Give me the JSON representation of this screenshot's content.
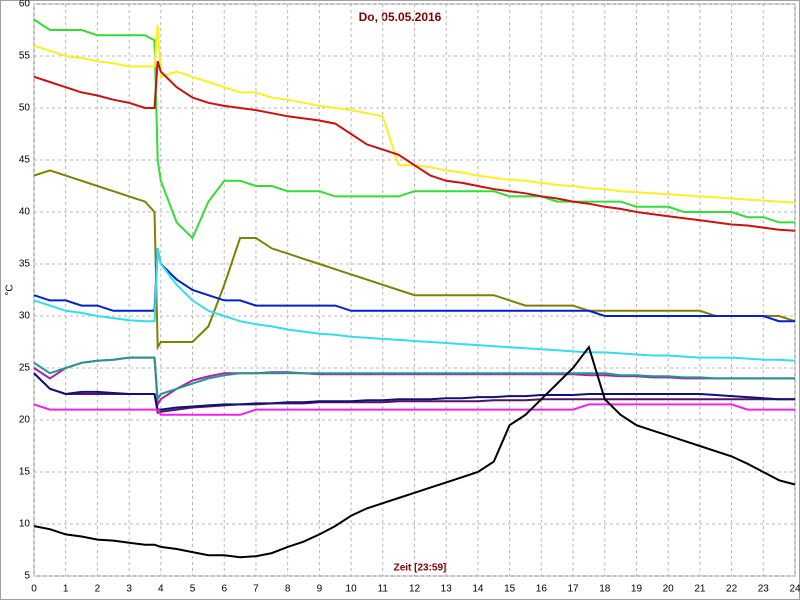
{
  "chart_data": {
    "type": "line",
    "title": "Do, 05.05.2016",
    "x_label": "Zeit [23:59]",
    "y_label": "°C",
    "x": [
      0,
      0.5,
      1,
      1.5,
      2,
      2.5,
      3,
      3.5,
      3.8,
      3.9,
      4,
      4.5,
      5,
      5.5,
      6,
      6.5,
      7,
      7.5,
      8,
      8.5,
      9,
      9.5,
      10,
      10.5,
      11,
      11.5,
      12,
      12.5,
      13,
      13.5,
      14,
      14.5,
      15,
      15.5,
      16,
      16.5,
      17,
      17.5,
      18,
      18.5,
      19,
      19.5,
      20,
      20.5,
      21,
      21.5,
      22,
      22.5,
      23,
      23.5,
      24
    ],
    "xlim": [
      0,
      24
    ],
    "xticks": [
      0,
      1,
      2,
      3,
      4,
      5,
      6,
      7,
      8,
      9,
      10,
      11,
      12,
      13,
      14,
      15,
      16,
      17,
      18,
      19,
      20,
      21,
      22,
      23,
      24
    ],
    "ylim": [
      5,
      60
    ],
    "yticks": [
      5,
      10,
      15,
      20,
      25,
      30,
      35,
      40,
      45,
      50,
      55,
      60
    ],
    "grid": true,
    "series": [
      {
        "color": "#33dd33",
        "values": [
          58.5,
          57.5,
          57.5,
          57.5,
          57,
          57,
          57,
          57,
          56.5,
          45,
          43,
          39,
          37.5,
          41,
          43,
          43,
          42.5,
          42.5,
          42,
          42,
          42,
          41.5,
          41.5,
          41.5,
          41.5,
          41.5,
          42,
          42,
          42,
          42,
          42,
          42,
          41.5,
          41.5,
          41.5,
          41,
          41,
          41,
          41,
          41,
          40.5,
          40.5,
          40.5,
          40,
          40,
          40,
          40,
          39.5,
          39.5,
          39,
          39
        ]
      },
      {
        "color": "#ffee22",
        "values": [
          56,
          55.5,
          55,
          54.8,
          54.5,
          54.3,
          54,
          54,
          54,
          58,
          53,
          53.5,
          53,
          52.5,
          52,
          51.5,
          51.5,
          51,
          50.8,
          50.5,
          50.2,
          50,
          49.8,
          49.5,
          49.2,
          44.5,
          44.5,
          44.3,
          44,
          43.8,
          43.5,
          43.3,
          43.1,
          43,
          42.8,
          42.6,
          42.5,
          42.3,
          42.2,
          42,
          41.9,
          41.8,
          41.7,
          41.6,
          41.5,
          41.4,
          41.3,
          41.2,
          41.1,
          41,
          40.9
        ]
      },
      {
        "color": "#cc1111",
        "values": [
          53,
          52.5,
          52,
          51.5,
          51.2,
          50.8,
          50.5,
          50,
          50,
          54.5,
          53.5,
          52,
          51,
          50.5,
          50.2,
          50,
          49.8,
          49.5,
          49.2,
          49,
          48.8,
          48.5,
          47.5,
          46.5,
          46,
          45.5,
          44.5,
          43.5,
          43,
          42.8,
          42.5,
          42.2,
          42,
          41.8,
          41.5,
          41.3,
          41,
          40.8,
          40.5,
          40.3,
          40,
          39.8,
          39.6,
          39.4,
          39.2,
          39,
          38.8,
          38.7,
          38.5,
          38.3,
          38.2
        ]
      },
      {
        "color": "#808000",
        "values": [
          43.5,
          44,
          43.5,
          43,
          42.5,
          42,
          41.5,
          41,
          40,
          27,
          27.5,
          27.5,
          27.5,
          29,
          33,
          37.5,
          37.5,
          36.5,
          36,
          35.5,
          35,
          34.5,
          34,
          33.5,
          33,
          32.5,
          32,
          32,
          32,
          32,
          32,
          32,
          31.5,
          31,
          31,
          31,
          31,
          30.5,
          30.5,
          30.5,
          30.5,
          30.5,
          30.5,
          30.5,
          30.5,
          30,
          30,
          30,
          30,
          30,
          29.5
        ]
      },
      {
        "color": "#0022cc",
        "values": [
          32,
          31.5,
          31.5,
          31,
          31,
          30.5,
          30.5,
          30.5,
          30.5,
          36.5,
          35,
          33.5,
          32.5,
          32,
          31.5,
          31.5,
          31,
          31,
          31,
          31,
          31,
          31,
          30.5,
          30.5,
          30.5,
          30.5,
          30.5,
          30.5,
          30.5,
          30.5,
          30.5,
          30.5,
          30.5,
          30.5,
          30.5,
          30.5,
          30.5,
          30.5,
          30,
          30,
          30,
          30,
          30,
          30,
          30,
          30,
          30,
          30,
          30,
          29.5,
          29.5
        ]
      },
      {
        "color": "#33ddee",
        "values": [
          31.5,
          31,
          30.5,
          30.3,
          30,
          29.8,
          29.6,
          29.5,
          29.5,
          36.5,
          35,
          33,
          31.5,
          30.5,
          30,
          29.5,
          29.2,
          29,
          28.7,
          28.5,
          28.3,
          28.2,
          28,
          27.9,
          27.8,
          27.7,
          27.6,
          27.5,
          27.4,
          27.3,
          27.2,
          27.1,
          27,
          26.9,
          26.8,
          26.7,
          26.6,
          26.5,
          26.5,
          26.4,
          26.3,
          26.2,
          26.2,
          26.1,
          26,
          26,
          26,
          25.9,
          25.8,
          25.8,
          25.7
        ]
      },
      {
        "color": "#aa22aa",
        "values": [
          25,
          24,
          25,
          25.5,
          25.7,
          25.8,
          26,
          26,
          26,
          21.5,
          22,
          23,
          23.8,
          24.2,
          24.5,
          24.5,
          24.5,
          24.6,
          24.6,
          24.5,
          24.4,
          24.4,
          24.4,
          24.4,
          24.4,
          24.4,
          24.4,
          24.4,
          24.4,
          24.4,
          24.4,
          24.4,
          24.4,
          24.4,
          24.4,
          24.4,
          24.4,
          24.3,
          24.3,
          24.2,
          24.2,
          24.1,
          24.1,
          24,
          24,
          24,
          24,
          24,
          24,
          24,
          24
        ]
      },
      {
        "color": "#22998f",
        "values": [
          25.5,
          24.5,
          25,
          25.5,
          25.7,
          25.8,
          26,
          26,
          26,
          22,
          22.5,
          23,
          23.5,
          24,
          24.3,
          24.5,
          24.5,
          24.5,
          24.5,
          24.5,
          24.5,
          24.5,
          24.5,
          24.5,
          24.5,
          24.5,
          24.5,
          24.5,
          24.5,
          24.5,
          24.5,
          24.5,
          24.5,
          24.5,
          24.5,
          24.5,
          24.5,
          24.5,
          24.5,
          24.3,
          24.3,
          24.2,
          24.2,
          24.1,
          24.1,
          24,
          24,
          24,
          24,
          24,
          24
        ]
      },
      {
        "color": "#551166",
        "values": [
          24.5,
          23,
          22.5,
          22.5,
          22.5,
          22.5,
          22.5,
          22.5,
          22.5,
          20.7,
          20.8,
          21,
          21.2,
          21.3,
          21.4,
          21.5,
          21.5,
          21.6,
          21.6,
          21.6,
          21.7,
          21.7,
          21.7,
          21.7,
          21.7,
          21.8,
          21.8,
          21.8,
          21.8,
          21.8,
          21.8,
          21.9,
          21.9,
          21.9,
          22,
          22,
          22,
          22,
          22,
          22,
          22,
          22,
          22,
          22,
          22,
          22,
          22,
          22,
          22,
          22,
          22
        ]
      },
      {
        "color": "#111177",
        "values": [
          24.5,
          23,
          22.5,
          22.7,
          22.7,
          22.6,
          22.5,
          22.5,
          22.5,
          21,
          21,
          21.2,
          21.3,
          21.4,
          21.5,
          21.5,
          21.6,
          21.6,
          21.7,
          21.7,
          21.8,
          21.8,
          21.8,
          21.9,
          21.9,
          22,
          22,
          22,
          22.1,
          22.1,
          22.2,
          22.2,
          22.3,
          22.3,
          22.4,
          22.4,
          22.4,
          22.5,
          22.5,
          22.5,
          22.5,
          22.5,
          22.5,
          22.5,
          22.5,
          22.4,
          22.3,
          22.2,
          22.1,
          22,
          22
        ]
      },
      {
        "color": "#ee22ee",
        "values": [
          21.5,
          21,
          21,
          21,
          21,
          21,
          21,
          21,
          21,
          21,
          20.5,
          20.5,
          20.5,
          20.5,
          20.5,
          20.5,
          21,
          21,
          21,
          21,
          21,
          21,
          21,
          21,
          21,
          21,
          21,
          21,
          21,
          21,
          21,
          21,
          21,
          21,
          21,
          21,
          21,
          21.5,
          21.5,
          21.5,
          21.5,
          21.5,
          21.5,
          21.5,
          21.5,
          21.5,
          21.5,
          21,
          21,
          21,
          21
        ]
      },
      {
        "color": "#000000",
        "values": [
          9.8,
          9.5,
          9,
          8.8,
          8.5,
          8.4,
          8.2,
          8,
          8,
          7.9,
          7.8,
          7.6,
          7.3,
          7,
          7,
          6.8,
          6.9,
          7.2,
          7.8,
          8.3,
          9,
          9.8,
          10.8,
          11.5,
          12,
          12.5,
          13,
          13.5,
          14,
          14.5,
          15,
          16,
          19.5,
          20.5,
          22,
          23.5,
          25,
          27,
          22,
          20.5,
          19.5,
          19,
          18.5,
          18,
          17.5,
          17,
          16.5,
          15.8,
          15,
          14.2,
          13.8
        ]
      }
    ]
  }
}
